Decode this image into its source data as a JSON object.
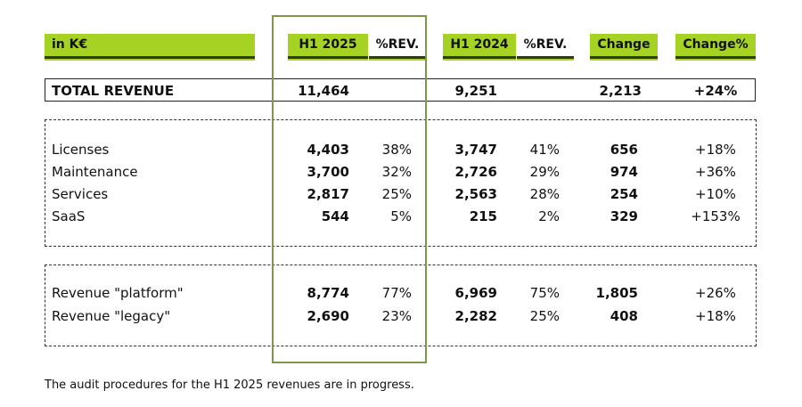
{
  "header": {
    "unit": "in K€",
    "h1_2025": "H1 2025",
    "rev_pct_1": "%REV.",
    "h1_2024": "H1 2024",
    "rev_pct_2": "%REV.",
    "change": "Change",
    "change_pct": "Change%"
  },
  "total": {
    "label": "TOTAL REVENUE",
    "h1_2025": "11,464",
    "h1_2024": "9,251",
    "change": "2,213",
    "change_pct": "+24%"
  },
  "segments": [
    {
      "label": "Licenses",
      "h1_2025": "4,403",
      "pct_2025": "38%",
      "h1_2024": "3,747",
      "pct_2024": "41%",
      "change": "656",
      "change_pct": "+18%"
    },
    {
      "label": "Maintenance",
      "h1_2025": "3,700",
      "pct_2025": "32%",
      "h1_2024": "2,726",
      "pct_2024": "29%",
      "change": "974",
      "change_pct": "+36%"
    },
    {
      "label": "Services",
      "h1_2025": "2,817",
      "pct_2025": "25%",
      "h1_2024": "2,563",
      "pct_2024": "28%",
      "change": "254",
      "change_pct": "+10%"
    },
    {
      "label": "SaaS",
      "h1_2025": "544",
      "pct_2025": "5%",
      "h1_2024": "215",
      "pct_2024": "2%",
      "change": "329",
      "change_pct": "+153%"
    }
  ],
  "platforms": [
    {
      "label": "Revenue \"platform\"",
      "h1_2025": "8,774",
      "pct_2025": "77%",
      "h1_2024": "6,969",
      "pct_2024": "75%",
      "change": "1,805",
      "change_pct": "+26%"
    },
    {
      "label": "Revenue \"legacy\"",
      "h1_2025": "2,690",
      "pct_2025": "23%",
      "h1_2024": "2,282",
      "pct_2024": "25%",
      "change": "408",
      "change_pct": "+18%"
    }
  ],
  "footnote": "The audit procedures for the H1 2025 revenues are in progress.",
  "colors": {
    "accent": "#a6d323",
    "frame": "#7a9a4a",
    "rule": "#2f3a12"
  }
}
